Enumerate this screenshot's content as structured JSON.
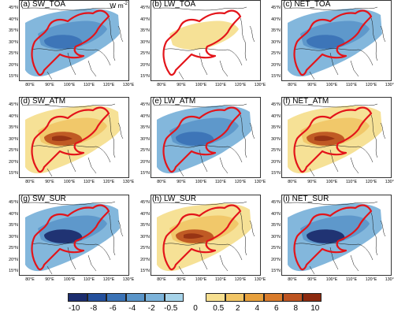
{
  "units_label": {
    "base": "W m",
    "exp": "-2"
  },
  "lat_labels": [
    "45°N",
    "40°N",
    "35°N",
    "30°N",
    "25°N",
    "20°N",
    "15°N"
  ],
  "lon_labels": [
    "80°E",
    "90°E",
    "100°E",
    "110°E",
    "120°E",
    "130°E"
  ],
  "colorbar": {
    "negative": {
      "colors": [
        "#1c2d6e",
        "#24509c",
        "#3b73b6",
        "#5a95c9",
        "#7cb3da",
        "#a6d3e9"
      ],
      "labels": [
        "-10",
        "-8",
        "-6",
        "-4",
        "-2",
        "-0.5"
      ]
    },
    "zero_label": "0",
    "positive": {
      "colors": [
        "#f6df90",
        "#f1c565",
        "#e7a03c",
        "#d97b2b",
        "#bd5421",
        "#8c2a10"
      ],
      "labels": [
        "0.5",
        "2",
        "4",
        "6",
        "8",
        "10"
      ]
    }
  },
  "panels": [
    {
      "id": "a",
      "title": "(a) SW_TOA",
      "show_units": true,
      "fill": "neg",
      "intensity": 2,
      "core": "neg"
    },
    {
      "id": "b",
      "title": "(b) LW_TOA",
      "show_units": false,
      "fill": "pos",
      "intensity": 1,
      "core": "none"
    },
    {
      "id": "c",
      "title": "(c) NET_TOA",
      "show_units": false,
      "fill": "neg",
      "intensity": 2,
      "core": "neg"
    },
    {
      "id": "d",
      "title": "(d) SW_ATM",
      "show_units": false,
      "fill": "pos",
      "intensity": 2,
      "core": "pos"
    },
    {
      "id": "e",
      "title": "(e) LW_ATM",
      "show_units": false,
      "fill": "neg",
      "intensity": 2,
      "core": "neg"
    },
    {
      "id": "f",
      "title": "(f) NET_ATM",
      "show_units": false,
      "fill": "pos",
      "intensity": 2,
      "core": "pos"
    },
    {
      "id": "g",
      "title": "(g) SW_SUR",
      "show_units": false,
      "fill": "neg",
      "intensity": 3,
      "core": "negstrong"
    },
    {
      "id": "h",
      "title": "(h) LW_SUR",
      "show_units": false,
      "fill": "pos",
      "intensity": 2,
      "core": "pos"
    },
    {
      "id": "i",
      "title": "(i) NET_SUR",
      "show_units": false,
      "fill": "neg",
      "intensity": 3,
      "core": "negstrong"
    }
  ]
}
